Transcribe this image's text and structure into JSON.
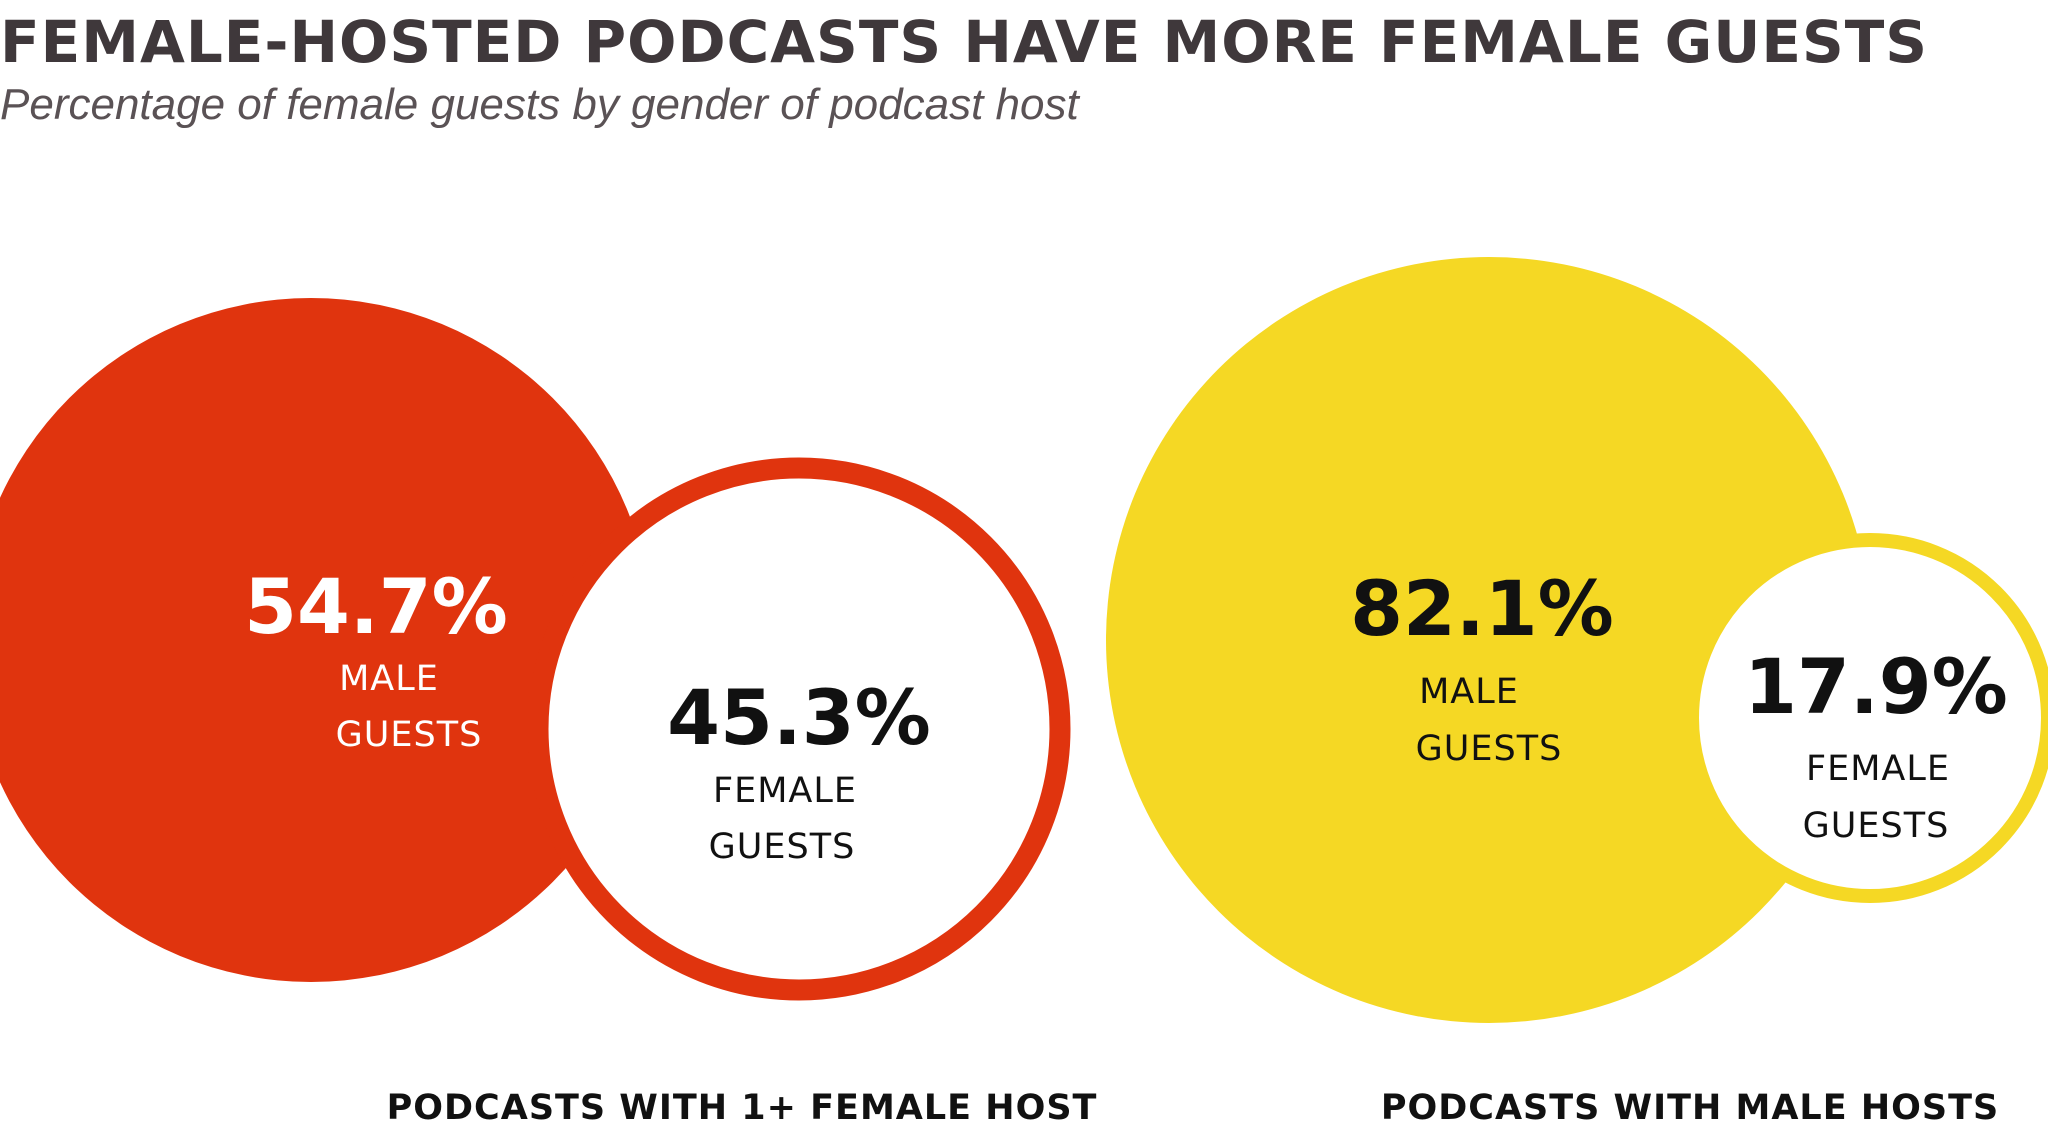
{
  "header": {
    "title": "FEMALE-HOSTED PODCASTS HAVE MORE FEMALE GUESTS",
    "subtitle": "Percentage of female guests by gender of podcast host"
  },
  "chart_data": {
    "type": "bubble-pair",
    "title": "FEMALE-HOSTED PODCASTS HAVE MORE FEMALE GUESTS",
    "subtitle": "Percentage of female guests by gender of podcast host",
    "groups": [
      {
        "label": "PODCASTS WITH 1+ FEMALE HOST",
        "color": "#e0340e",
        "text_color_main": "#ffffff",
        "segments": [
          {
            "pct_label": "54.7%",
            "value": 54.7,
            "line1": "MALE",
            "line2": "GUESTS",
            "kind": "male"
          },
          {
            "pct_label": "45.3%",
            "value": 45.3,
            "line1": "FEMALE",
            "line2": "GUESTS",
            "kind": "female"
          }
        ]
      },
      {
        "label": "PODCASTS WITH MALE HOSTS",
        "color": "#f5d824",
        "text_color_main": "#111111",
        "segments": [
          {
            "pct_label": "82.1%",
            "value": 82.1,
            "line1": "MALE",
            "line2": "GUESTS",
            "kind": "male"
          },
          {
            "pct_label": "17.9%",
            "value": 17.9,
            "line1": "FEMALE",
            "line2": "GUESTS",
            "kind": "female"
          }
        ]
      }
    ]
  }
}
